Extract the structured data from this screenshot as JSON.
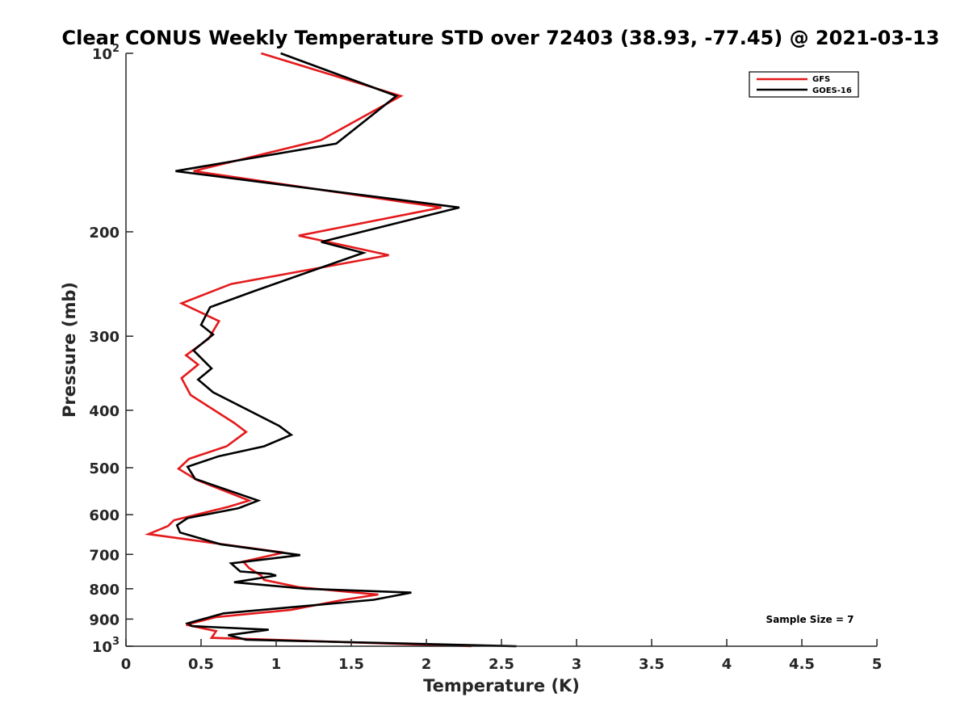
{
  "chart_data": {
    "type": "line",
    "title": "Clear CONUS Weekly Temperature STD over 72403 (38.93, -77.45) @ 2021-03-13",
    "xlabel": "Temperature (K)",
    "ylabel": "Pressure (mb)",
    "xlim": [
      0,
      5
    ],
    "ylim": [
      100,
      1000
    ],
    "y_scale": "log",
    "y_reversed": true,
    "x_ticks": [
      {
        "value": 0,
        "label": "0"
      },
      {
        "value": 0.5,
        "label": "0.5"
      },
      {
        "value": 1,
        "label": "1"
      },
      {
        "value": 1.5,
        "label": "1.5"
      },
      {
        "value": 2,
        "label": "2"
      },
      {
        "value": 2.5,
        "label": "2.5"
      },
      {
        "value": 3,
        "label": "3"
      },
      {
        "value": 3.5,
        "label": "3.5"
      },
      {
        "value": 4,
        "label": "4"
      },
      {
        "value": 4.5,
        "label": "4.5"
      },
      {
        "value": 5,
        "label": "5"
      }
    ],
    "y_ticks": [
      {
        "value": 100,
        "base": "10",
        "sup": "2"
      },
      {
        "value": 200,
        "label": "200"
      },
      {
        "value": 300,
        "label": "300"
      },
      {
        "value": 400,
        "label": "400"
      },
      {
        "value": 500,
        "label": "500"
      },
      {
        "value": 600,
        "label": "600"
      },
      {
        "value": 700,
        "label": "700"
      },
      {
        "value": 800,
        "label": "800"
      },
      {
        "value": 900,
        "label": "900"
      },
      {
        "value": 1000,
        "base": "10",
        "sup": "3"
      }
    ],
    "grid": false,
    "legend_position": "top-right",
    "annotation": "Sample Size = 7",
    "series": [
      {
        "name": "GFS",
        "color": "#e41a1c",
        "points": [
          [
            0.9,
            100
          ],
          [
            1.83,
            118
          ],
          [
            1.3,
            140
          ],
          [
            0.45,
            158
          ],
          [
            2.1,
            182
          ],
          [
            1.15,
            203
          ],
          [
            1.75,
            219
          ],
          [
            0.7,
            245
          ],
          [
            0.37,
            264
          ],
          [
            0.62,
            283
          ],
          [
            0.55,
            303
          ],
          [
            0.4,
            323
          ],
          [
            0.48,
            335
          ],
          [
            0.37,
            353
          ],
          [
            0.43,
            377
          ],
          [
            0.72,
            420
          ],
          [
            0.8,
            435
          ],
          [
            0.67,
            460
          ],
          [
            0.42,
            483
          ],
          [
            0.35,
            502
          ],
          [
            0.47,
            524
          ],
          [
            0.82,
            568
          ],
          [
            0.68,
            582
          ],
          [
            0.32,
            613
          ],
          [
            0.28,
            627
          ],
          [
            0.15,
            647
          ],
          [
            0.55,
            668
          ],
          [
            1.05,
            695
          ],
          [
            0.78,
            720
          ],
          [
            0.82,
            738
          ],
          [
            0.9,
            760
          ],
          [
            0.92,
            773
          ],
          [
            1.15,
            795
          ],
          [
            1.6,
            815
          ],
          [
            1.68,
            818
          ],
          [
            1.45,
            835
          ],
          [
            1.1,
            868
          ],
          [
            0.6,
            893
          ],
          [
            0.4,
            920
          ],
          [
            0.6,
            943
          ],
          [
            0.57,
            968
          ],
          [
            2.3,
            1000
          ]
        ]
      },
      {
        "name": "GOES-16",
        "color": "#000000",
        "points": [
          [
            1.03,
            100
          ],
          [
            1.8,
            118
          ],
          [
            1.4,
            142
          ],
          [
            0.33,
            158
          ],
          [
            2.22,
            182
          ],
          [
            1.3,
            208
          ],
          [
            1.58,
            217
          ],
          [
            0.85,
            252
          ],
          [
            0.56,
            268
          ],
          [
            0.5,
            287
          ],
          [
            0.58,
            298
          ],
          [
            0.45,
            317
          ],
          [
            0.57,
            340
          ],
          [
            0.48,
            355
          ],
          [
            0.58,
            373
          ],
          [
            1.02,
            425
          ],
          [
            1.1,
            440
          ],
          [
            0.92,
            460
          ],
          [
            0.62,
            478
          ],
          [
            0.41,
            498
          ],
          [
            0.46,
            522
          ],
          [
            0.88,
            568
          ],
          [
            0.75,
            585
          ],
          [
            0.41,
            608
          ],
          [
            0.34,
            625
          ],
          [
            0.36,
            643
          ],
          [
            0.63,
            673
          ],
          [
            1.16,
            702
          ],
          [
            0.7,
            725
          ],
          [
            0.76,
            748
          ],
          [
            0.96,
            755
          ],
          [
            1.0,
            760
          ],
          [
            0.72,
            780
          ],
          [
            1.2,
            800
          ],
          [
            1.9,
            812
          ],
          [
            1.65,
            835
          ],
          [
            0.65,
            880
          ],
          [
            0.41,
            915
          ],
          [
            0.44,
            925
          ],
          [
            0.95,
            938
          ],
          [
            0.68,
            958
          ],
          [
            0.8,
            975
          ],
          [
            2.6,
            1000
          ]
        ]
      }
    ]
  }
}
